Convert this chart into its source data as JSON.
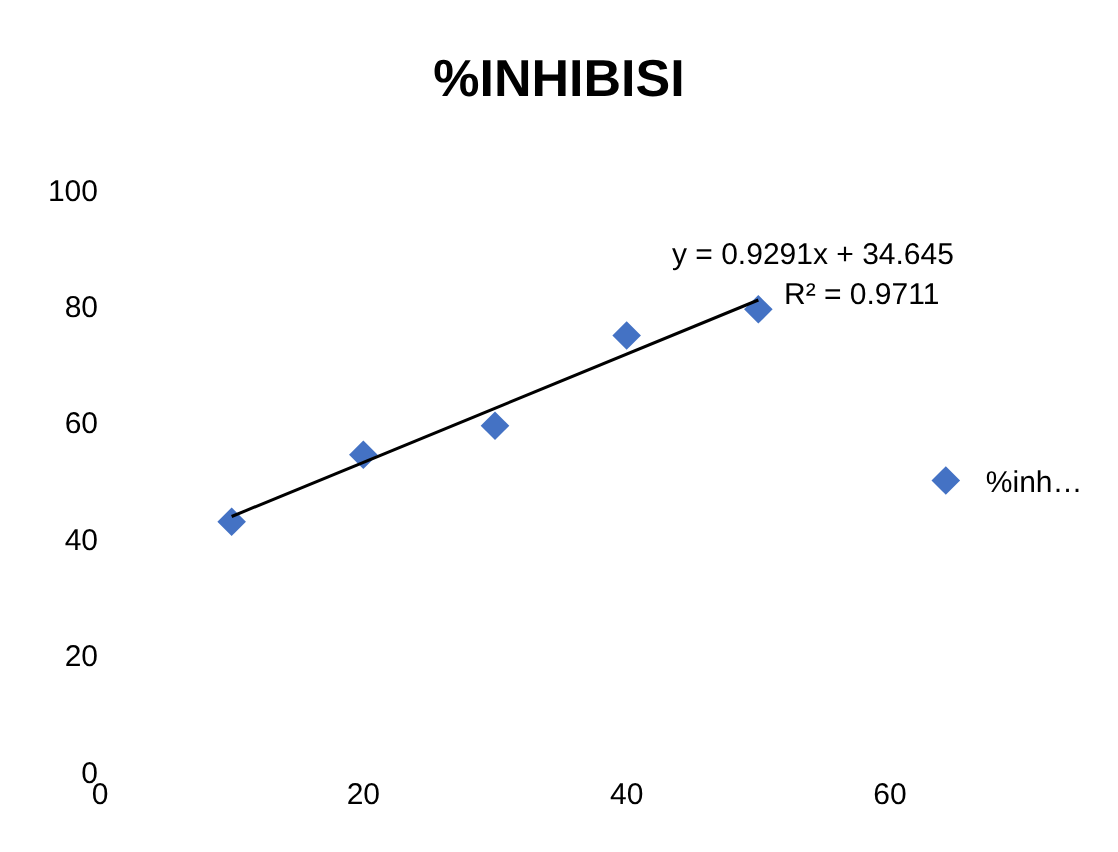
{
  "chart_data": {
    "type": "scatter",
    "title": "%INHIBISI",
    "legend": "right",
    "xlim": [
      0,
      60
    ],
    "xticks": [
      0,
      20,
      40,
      60
    ],
    "ylim": [
      0,
      100
    ],
    "yticks": [
      0,
      20,
      40,
      60,
      80,
      100
    ],
    "series": [
      {
        "name": "%inh…",
        "marker": "diamond",
        "color": "#4472c4",
        "x": [
          10,
          20,
          30,
          40,
          50
        ],
        "values": [
          43,
          54.5,
          59.5,
          75,
          79.5
        ]
      },
      {
        "type": "line",
        "color": "#000000",
        "x": [
          10,
          50
        ],
        "values": [
          43.9,
          81.1
        ]
      }
    ],
    "annotations": [
      "y = 0.9291x + 34.645",
      "R² = 0.9711"
    ]
  }
}
